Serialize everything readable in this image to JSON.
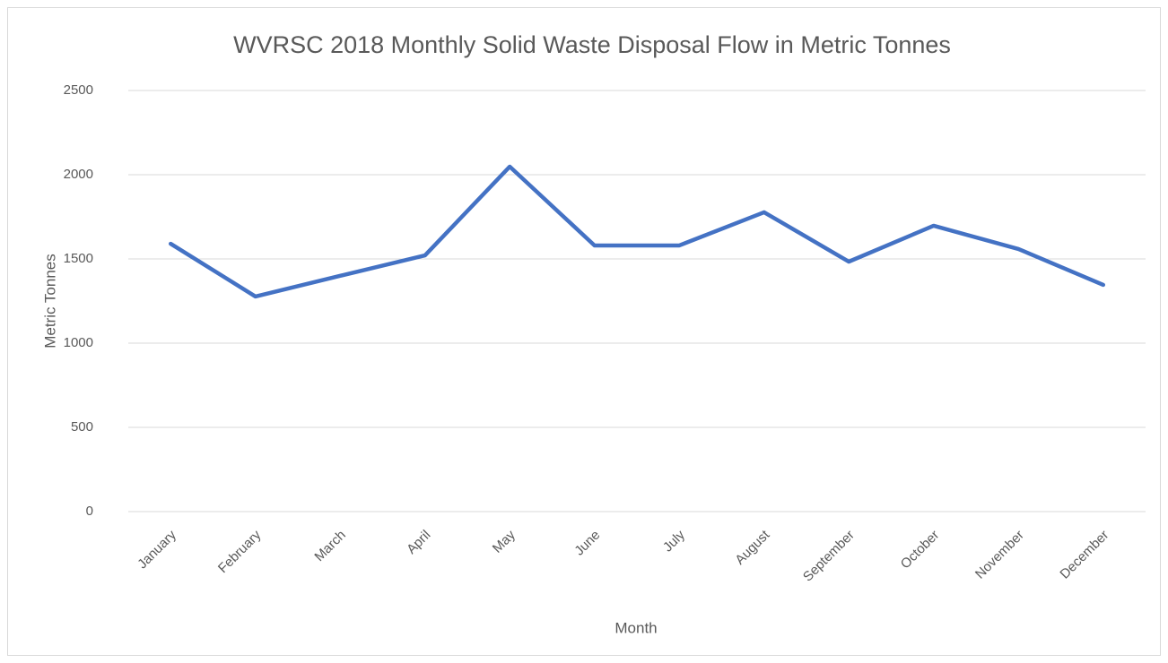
{
  "chart_data": {
    "type": "line",
    "title": "WVRSC 2018 Monthly Solid Waste Disposal Flow in Metric Tonnes",
    "x_label": "Month",
    "y_label": "Metric Tonnes",
    "categories": [
      "January",
      "February",
      "March",
      "April",
      "May",
      "June",
      "July",
      "August",
      "September",
      "October",
      "November",
      "December"
    ],
    "series": [
      {
        "name": "Metric Tonnes",
        "color": "#4472c4",
        "values": [
          1590,
          1277,
          1400,
          1521,
          2048,
          1580,
          1580,
          1777,
          1484,
          1697,
          1559,
          1346
        ]
      }
    ],
    "ylim": [
      0,
      2500
    ],
    "yticks": [
      0,
      500,
      1000,
      1500,
      2000,
      2500
    ],
    "grid": true
  }
}
